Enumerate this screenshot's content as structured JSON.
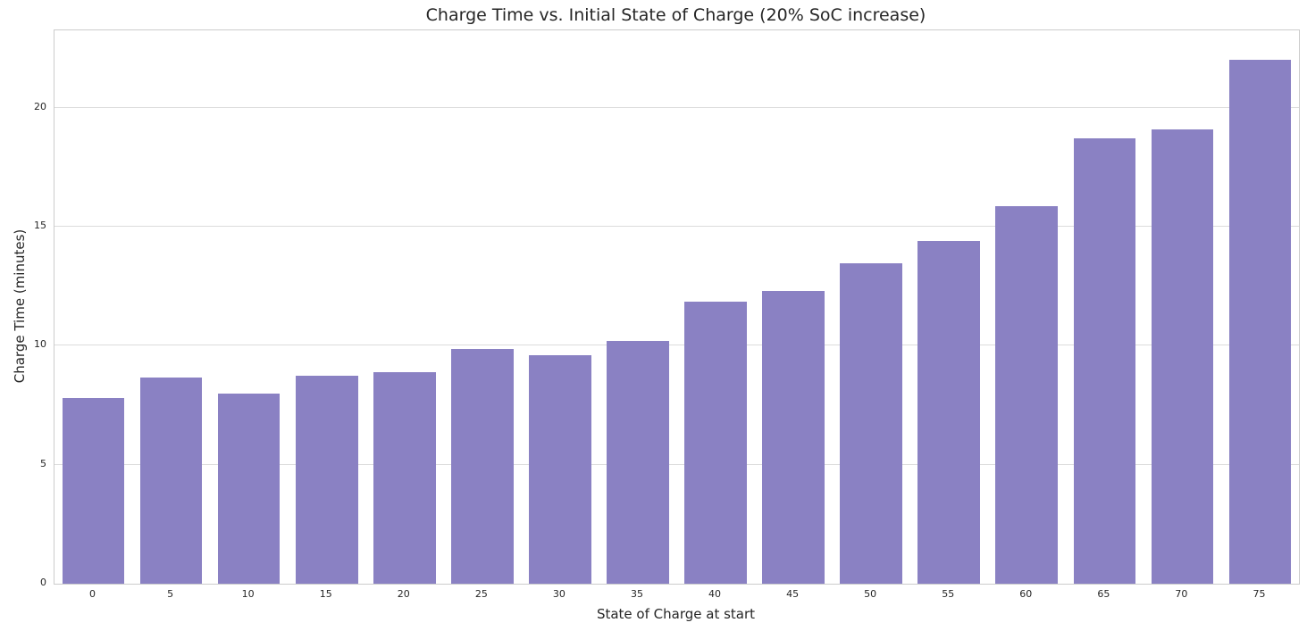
{
  "chart_data": {
    "type": "bar",
    "title": "Charge Time vs. Initial State of Charge (20% SoC increase)",
    "xlabel": "State of Charge at start",
    "ylabel": "Charge Time (minutes)",
    "categories": [
      "0",
      "5",
      "10",
      "15",
      "20",
      "25",
      "30",
      "35",
      "40",
      "45",
      "50",
      "55",
      "60",
      "65",
      "70",
      "75"
    ],
    "values": [
      7.8,
      8.65,
      8.0,
      8.75,
      8.9,
      9.85,
      9.6,
      10.2,
      11.85,
      12.3,
      13.45,
      14.4,
      15.85,
      18.7,
      19.1,
      22.0
    ],
    "yticks": [
      0,
      5,
      10,
      15,
      20
    ],
    "ylim": [
      0,
      23.25
    ],
    "bar_color": "#8a81c3",
    "bar_width_fraction": 0.8,
    "grid": true,
    "grid_color": "#dcdcdc",
    "spine_color": "#cccccc",
    "background": "#ffffff",
    "text_color": "#262626",
    "legend": "none"
  }
}
